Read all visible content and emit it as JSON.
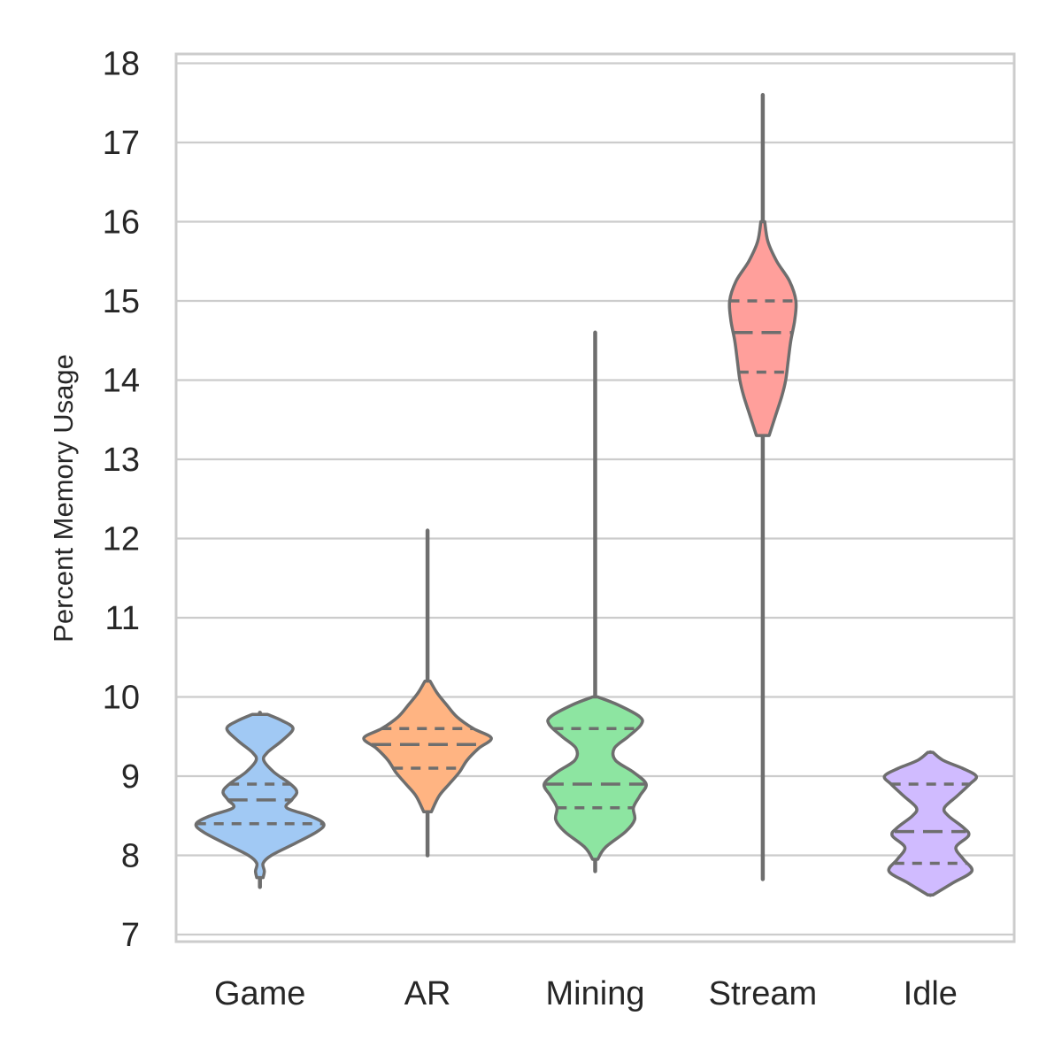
{
  "chart_data": {
    "type": "violin",
    "title": "",
    "xlabel": "",
    "ylabel": "Percent Memory Usage",
    "ylim": [
      7,
      18
    ],
    "yticks": [
      7,
      8,
      9,
      10,
      11,
      12,
      13,
      14,
      15,
      16,
      17,
      18
    ],
    "grid": "horizontal",
    "categories": [
      "Game",
      "AR",
      "Mining",
      "Stream",
      "Idle"
    ],
    "series": [
      {
        "category": "Game",
        "color": "#a1c9f4",
        "min": 7.6,
        "max": 9.8,
        "q1": 8.4,
        "median": 8.7,
        "q3": 8.9,
        "profile": [
          [
            7.6,
            0.02
          ],
          [
            7.72,
            0.05
          ],
          [
            7.8,
            0.07
          ],
          [
            7.9,
            0.05
          ],
          [
            8.0,
            0.18
          ],
          [
            8.15,
            0.55
          ],
          [
            8.3,
            0.9
          ],
          [
            8.4,
            1.0
          ],
          [
            8.5,
            0.78
          ],
          [
            8.6,
            0.42
          ],
          [
            8.7,
            0.5
          ],
          [
            8.8,
            0.58
          ],
          [
            8.9,
            0.48
          ],
          [
            9.05,
            0.22
          ],
          [
            9.2,
            0.06
          ],
          [
            9.3,
            0.12
          ],
          [
            9.45,
            0.35
          ],
          [
            9.6,
            0.52
          ],
          [
            9.7,
            0.35
          ],
          [
            9.78,
            0.12
          ],
          [
            9.8,
            0.02
          ]
        ]
      },
      {
        "category": "AR",
        "color": "#ffb482",
        "min": 8.0,
        "max": 12.1,
        "q1": 9.1,
        "median": 9.4,
        "q3": 9.6,
        "profile": [
          [
            8.0,
            0.01
          ],
          [
            8.3,
            0.02
          ],
          [
            8.55,
            0.06
          ],
          [
            8.75,
            0.18
          ],
          [
            8.9,
            0.34
          ],
          [
            9.05,
            0.5
          ],
          [
            9.2,
            0.62
          ],
          [
            9.35,
            0.8
          ],
          [
            9.48,
            1.0
          ],
          [
            9.6,
            0.72
          ],
          [
            9.75,
            0.46
          ],
          [
            9.9,
            0.3
          ],
          [
            10.05,
            0.15
          ],
          [
            10.2,
            0.04
          ],
          [
            10.5,
            0.02
          ],
          [
            11.0,
            0.01
          ],
          [
            12.1,
            0.01
          ]
        ]
      },
      {
        "category": "Mining",
        "color": "#8de5a1",
        "min": 7.8,
        "max": 14.6,
        "q1": 8.6,
        "median": 8.9,
        "q3": 9.6,
        "profile": [
          [
            7.8,
            0.01
          ],
          [
            7.95,
            0.04
          ],
          [
            8.1,
            0.16
          ],
          [
            8.3,
            0.48
          ],
          [
            8.45,
            0.62
          ],
          [
            8.6,
            0.6
          ],
          [
            8.75,
            0.7
          ],
          [
            8.9,
            0.8
          ],
          [
            9.05,
            0.6
          ],
          [
            9.2,
            0.32
          ],
          [
            9.35,
            0.3
          ],
          [
            9.5,
            0.52
          ],
          [
            9.65,
            0.72
          ],
          [
            9.75,
            0.7
          ],
          [
            9.9,
            0.36
          ],
          [
            10.0,
            0.04
          ],
          [
            10.5,
            0.01
          ],
          [
            14.6,
            0.01
          ]
        ]
      },
      {
        "category": "Stream",
        "color": "#ff9f9b",
        "min": 7.7,
        "max": 17.6,
        "q1": 14.1,
        "median": 14.6,
        "q3": 15.0,
        "profile": [
          [
            7.7,
            0.01
          ],
          [
            13.0,
            0.01
          ],
          [
            13.3,
            0.1
          ],
          [
            13.55,
            0.2
          ],
          [
            13.8,
            0.3
          ],
          [
            14.0,
            0.36
          ],
          [
            14.25,
            0.4
          ],
          [
            14.5,
            0.44
          ],
          [
            14.75,
            0.5
          ],
          [
            15.0,
            0.52
          ],
          [
            15.25,
            0.42
          ],
          [
            15.5,
            0.22
          ],
          [
            15.75,
            0.08
          ],
          [
            16.0,
            0.03
          ],
          [
            16.5,
            0.02
          ],
          [
            17.6,
            0.01
          ]
        ]
      },
      {
        "category": "Idle",
        "color": "#d0bbff",
        "min": 7.5,
        "max": 9.3,
        "q1": 7.9,
        "median": 8.3,
        "q3": 8.9,
        "profile": [
          [
            7.5,
            0.04
          ],
          [
            7.65,
            0.35
          ],
          [
            7.8,
            0.65
          ],
          [
            7.95,
            0.52
          ],
          [
            8.1,
            0.4
          ],
          [
            8.25,
            0.6
          ],
          [
            8.35,
            0.52
          ],
          [
            8.5,
            0.28
          ],
          [
            8.6,
            0.22
          ],
          [
            8.75,
            0.42
          ],
          [
            8.9,
            0.62
          ],
          [
            9.0,
            0.72
          ],
          [
            9.1,
            0.5
          ],
          [
            9.2,
            0.2
          ],
          [
            9.3,
            0.04
          ]
        ]
      }
    ]
  }
}
